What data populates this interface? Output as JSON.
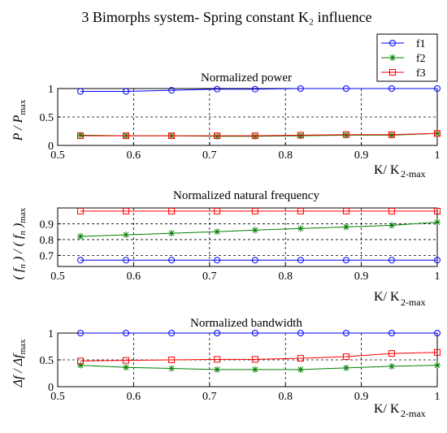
{
  "figure": {
    "title": "3  Bimorphs system- Spring constant K₂ influence"
  },
  "legend": {
    "entries": [
      "f1",
      "f2",
      "f3"
    ]
  },
  "colors": {
    "f1": "#0000ff",
    "f2": "#007f00",
    "f3": "#ff0000",
    "axis": "#000000",
    "grid": "#000000"
  },
  "chart_data": [
    {
      "type": "line",
      "title": "Normalized power",
      "xlabel": "K/ K2-max",
      "ylabel": "P / Pmax",
      "xlim": [
        0.5,
        1
      ],
      "ylim": [
        0,
        1
      ],
      "xticks": [
        "0.5",
        "0.6",
        "0.7",
        "0.8",
        "0.9",
        "1"
      ],
      "yticks": [
        "0",
        "0.5",
        "1"
      ],
      "grid": "dashed",
      "x": [
        0.53,
        0.59,
        0.65,
        0.71,
        0.76,
        0.82,
        0.88,
        0.94,
        1.0
      ],
      "series": [
        {
          "name": "f1",
          "marker": "circle",
          "values": [
            0.95,
            0.95,
            0.97,
            0.99,
            0.99,
            1.0,
            1.0,
            1.0,
            1.0
          ]
        },
        {
          "name": "f2",
          "marker": "star",
          "values": [
            0.18,
            0.17,
            0.17,
            0.16,
            0.16,
            0.17,
            0.18,
            0.18,
            0.21
          ]
        },
        {
          "name": "f3",
          "marker": "square",
          "values": [
            0.17,
            0.17,
            0.17,
            0.17,
            0.17,
            0.18,
            0.19,
            0.19,
            0.21
          ]
        }
      ]
    },
    {
      "type": "line",
      "title": "Normalized natural frequency",
      "xlabel": "K/ K2-max",
      "ylabel": "(fn) / (fn)max",
      "xlim": [
        0.5,
        1
      ],
      "ylim": [
        0.63,
        1.0
      ],
      "xticks": [
        "0.5",
        "0.6",
        "0.7",
        "0.8",
        "0.9",
        "1"
      ],
      "yticks": [
        "0.7",
        "0.8",
        "0.9"
      ],
      "grid": "dashed",
      "x": [
        0.53,
        0.59,
        0.65,
        0.71,
        0.76,
        0.82,
        0.88,
        0.94,
        1.0
      ],
      "series": [
        {
          "name": "f1",
          "marker": "circle",
          "values": [
            0.67,
            0.67,
            0.67,
            0.67,
            0.67,
            0.67,
            0.67,
            0.67,
            0.67
          ]
        },
        {
          "name": "f2",
          "marker": "star",
          "values": [
            0.82,
            0.83,
            0.84,
            0.85,
            0.86,
            0.87,
            0.88,
            0.89,
            0.91
          ]
        },
        {
          "name": "f3",
          "marker": "square",
          "values": [
            0.98,
            0.98,
            0.98,
            0.98,
            0.98,
            0.98,
            0.98,
            0.98,
            0.98
          ]
        }
      ]
    },
    {
      "type": "line",
      "title": "Normalized bandwidth",
      "xlabel": "K/ K2-max",
      "ylabel": "Δf / Δfmax",
      "xlim": [
        0.5,
        1
      ],
      "ylim": [
        0,
        1
      ],
      "xticks": [
        "0.5",
        "0.6",
        "0.7",
        "0.8",
        "0.9",
        "1"
      ],
      "yticks": [
        "0",
        "0.5",
        "1"
      ],
      "grid": "dashed",
      "x": [
        0.53,
        0.59,
        0.65,
        0.71,
        0.76,
        0.82,
        0.88,
        0.94,
        1.0
      ],
      "series": [
        {
          "name": "f1",
          "marker": "circle",
          "values": [
            1.0,
            1.0,
            1.0,
            1.0,
            1.0,
            1.0,
            1.0,
            1.0,
            1.0
          ]
        },
        {
          "name": "f2",
          "marker": "star",
          "values": [
            0.4,
            0.36,
            0.34,
            0.32,
            0.32,
            0.32,
            0.35,
            0.38,
            0.4
          ]
        },
        {
          "name": "f3",
          "marker": "square",
          "values": [
            0.48,
            0.49,
            0.5,
            0.51,
            0.51,
            0.53,
            0.56,
            0.62,
            0.64
          ]
        }
      ]
    }
  ]
}
